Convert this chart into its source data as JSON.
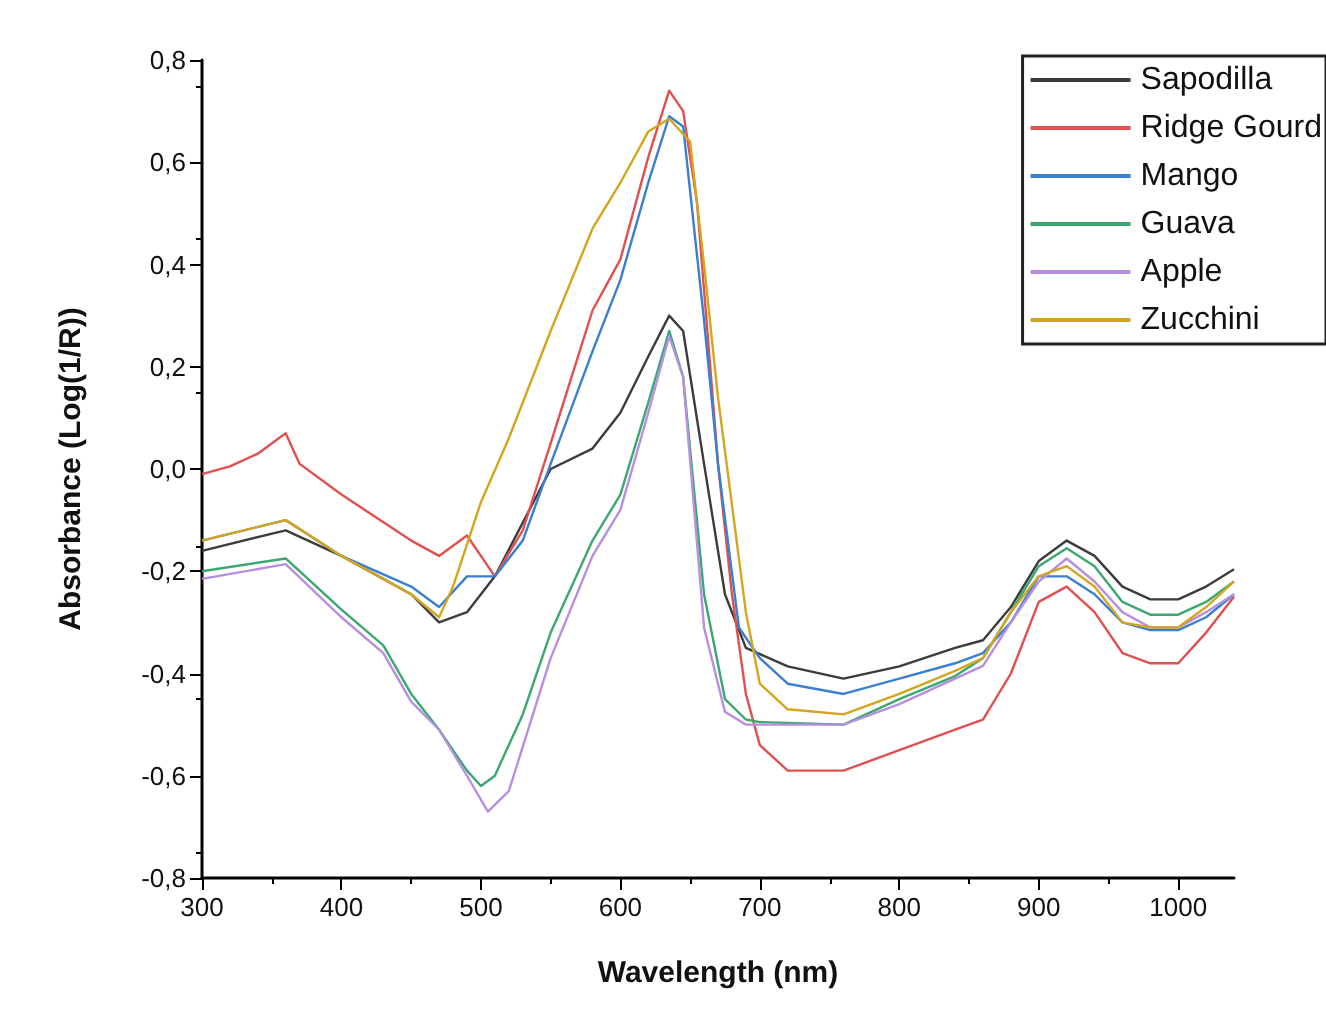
{
  "chart_data": {
    "type": "line",
    "xlabel": "Wavelength (nm)",
    "ylabel": "Absorbance (Log(1/R))",
    "xlim": [
      300,
      1040
    ],
    "xticks": [
      300,
      400,
      500,
      600,
      700,
      800,
      900,
      1000
    ],
    "ylim": [
      -0.8,
      0.8
    ],
    "yticks": [
      {
        "value": -0.8,
        "label": "-0,8"
      },
      {
        "value": -0.6,
        "label": "-0,6"
      },
      {
        "value": -0.4,
        "label": "-0,4"
      },
      {
        "value": -0.2,
        "label": "-0,2"
      },
      {
        "value": 0,
        "label": "0,0"
      },
      {
        "value": 0.2,
        "label": "0,2"
      },
      {
        "value": 0.4,
        "label": "0,4"
      },
      {
        "value": 0.6,
        "label": "0,6"
      },
      {
        "value": 0.8,
        "label": "0,8"
      }
    ],
    "grid": false,
    "legend": "top right",
    "marker": "none",
    "line_style": "solid",
    "series": [
      {
        "name": "Sapodilla",
        "color": "#3c3c3c",
        "x": [
          300,
          360,
          400,
          450,
          470,
          490,
          510,
          550,
          580,
          600,
          620,
          635,
          645,
          660,
          675,
          690,
          720,
          760,
          800,
          840,
          860,
          880,
          900,
          920,
          940,
          960,
          980,
          1000,
          1020,
          1040
        ],
        "values": [
          -0.16,
          -0.12,
          -0.17,
          -0.245,
          -0.3,
          -0.28,
          -0.21,
          0.0,
          0.04,
          0.11,
          0.22,
          0.3,
          0.27,
          0.01,
          -0.245,
          -0.35,
          -0.386,
          -0.41,
          -0.386,
          -0.35,
          -0.335,
          -0.27,
          -0.18,
          -0.14,
          -0.17,
          -0.23,
          -0.255,
          -0.255,
          -0.23,
          -0.196
        ]
      },
      {
        "name": "Ridge Gourd",
        "color": "#e05050",
        "x": [
          300,
          320,
          340,
          360,
          370,
          400,
          450,
          470,
          490,
          510,
          530,
          550,
          580,
          600,
          620,
          635,
          645,
          655,
          670,
          680,
          690,
          700,
          720,
          760,
          800,
          840,
          860,
          880,
          900,
          920,
          940,
          960,
          980,
          1000,
          1020,
          1040
        ],
        "values": [
          -0.01,
          0.005,
          0.03,
          0.07,
          0.01,
          -0.05,
          -0.14,
          -0.17,
          -0.13,
          -0.21,
          -0.12,
          0.05,
          0.31,
          0.41,
          0.61,
          0.74,
          0.7,
          0.52,
          0.01,
          -0.245,
          -0.44,
          -0.54,
          -0.59,
          -0.59,
          -0.55,
          -0.51,
          -0.49,
          -0.4,
          -0.26,
          -0.23,
          -0.28,
          -0.36,
          -0.38,
          -0.38,
          -0.32,
          -0.25
        ]
      },
      {
        "name": "Mango",
        "color": "#3a7fd0",
        "x": [
          300,
          360,
          400,
          450,
          470,
          490,
          510,
          530,
          550,
          580,
          600,
          620,
          635,
          645,
          660,
          670,
          685,
          700,
          720,
          760,
          800,
          840,
          860,
          880,
          900,
          920,
          940,
          960,
          980,
          1000,
          1020,
          1040
        ],
        "values": [
          -0.14,
          -0.1,
          -0.17,
          -0.23,
          -0.27,
          -0.21,
          -0.21,
          -0.14,
          0.01,
          0.23,
          0.37,
          0.56,
          0.69,
          0.67,
          0.29,
          0.01,
          -0.31,
          -0.37,
          -0.42,
          -0.44,
          -0.41,
          -0.38,
          -0.36,
          -0.3,
          -0.21,
          -0.21,
          -0.245,
          -0.3,
          -0.315,
          -0.315,
          -0.29,
          -0.245
        ]
      },
      {
        "name": "Guava",
        "color": "#3aa870",
        "x": [
          300,
          360,
          400,
          430,
          450,
          470,
          490,
          500,
          510,
          530,
          550,
          580,
          600,
          620,
          635,
          645,
          660,
          675,
          690,
          700,
          760,
          800,
          840,
          860,
          880,
          900,
          920,
          940,
          960,
          980,
          1000,
          1020,
          1040
        ],
        "values": [
          -0.2,
          -0.175,
          -0.275,
          -0.345,
          -0.44,
          -0.51,
          -0.59,
          -0.62,
          -0.6,
          -0.48,
          -0.32,
          -0.14,
          -0.05,
          0.13,
          0.27,
          0.18,
          -0.245,
          -0.45,
          -0.49,
          -0.495,
          -0.5,
          -0.45,
          -0.405,
          -0.37,
          -0.28,
          -0.19,
          -0.155,
          -0.19,
          -0.26,
          -0.285,
          -0.285,
          -0.26,
          -0.22
        ]
      },
      {
        "name": "Apple",
        "color": "#b68fe0",
        "x": [
          300,
          360,
          400,
          430,
          450,
          470,
          490,
          505,
          520,
          550,
          580,
          600,
          620,
          635,
          645,
          660,
          675,
          690,
          700,
          760,
          800,
          840,
          860,
          880,
          900,
          920,
          940,
          960,
          980,
          1000,
          1020,
          1040
        ],
        "values": [
          -0.215,
          -0.186,
          -0.29,
          -0.36,
          -0.455,
          -0.51,
          -0.6,
          -0.67,
          -0.63,
          -0.37,
          -0.17,
          -0.08,
          0.11,
          0.26,
          0.18,
          -0.31,
          -0.475,
          -0.5,
          -0.5,
          -0.5,
          -0.46,
          -0.41,
          -0.385,
          -0.3,
          -0.22,
          -0.175,
          -0.22,
          -0.28,
          -0.31,
          -0.31,
          -0.28,
          -0.245
        ]
      },
      {
        "name": "Zucchini",
        "color": "#d4a520",
        "x": [
          300,
          360,
          400,
          450,
          470,
          480,
          500,
          520,
          550,
          580,
          600,
          620,
          635,
          650,
          660,
          670,
          690,
          700,
          720,
          760,
          800,
          840,
          860,
          880,
          900,
          920,
          940,
          960,
          980,
          1000,
          1020,
          1040
        ],
        "values": [
          -0.14,
          -0.1,
          -0.17,
          -0.245,
          -0.29,
          -0.23,
          -0.065,
          0.06,
          0.27,
          0.47,
          0.56,
          0.66,
          0.685,
          0.64,
          0.4,
          0.14,
          -0.28,
          -0.42,
          -0.47,
          -0.48,
          -0.44,
          -0.395,
          -0.37,
          -0.28,
          -0.21,
          -0.19,
          -0.23,
          -0.3,
          -0.31,
          -0.31,
          -0.27,
          -0.22
        ]
      }
    ]
  }
}
